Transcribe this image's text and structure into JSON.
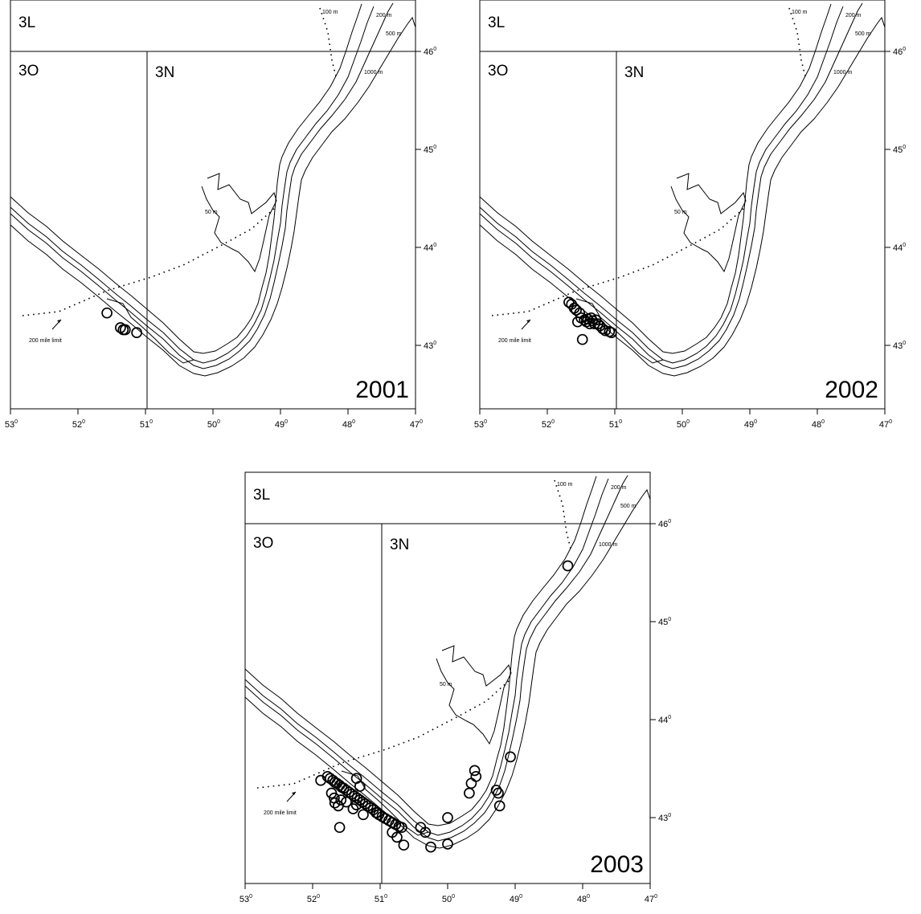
{
  "maps": [
    {
      "year": "2001",
      "areas": {
        "top": "3L",
        "bottom_left": "3O",
        "bottom_right": "3N"
      },
      "show_limit_label": true,
      "points": [
        [
          51.57,
          43.33
        ],
        [
          51.37,
          43.18
        ],
        [
          51.33,
          43.16
        ],
        [
          51.3,
          43.16
        ],
        [
          51.13,
          43.13
        ]
      ]
    },
    {
      "year": "2002",
      "areas": {
        "top": "3L",
        "bottom_left": "3O",
        "bottom_right": "3N"
      },
      "show_limit_label": true,
      "points": [
        [
          51.68,
          43.44
        ],
        [
          51.64,
          43.42
        ],
        [
          51.6,
          43.38
        ],
        [
          51.57,
          43.36
        ],
        [
          51.52,
          43.33
        ],
        [
          51.5,
          43.28
        ],
        [
          51.45,
          43.26
        ],
        [
          51.42,
          43.24
        ],
        [
          51.4,
          43.27
        ],
        [
          51.37,
          43.22
        ],
        [
          51.35,
          43.28
        ],
        [
          51.33,
          43.25
        ],
        [
          51.3,
          43.22
        ],
        [
          51.28,
          43.26
        ],
        [
          51.25,
          43.22
        ],
        [
          51.22,
          43.2
        ],
        [
          51.18,
          43.17
        ],
        [
          51.14,
          43.15
        ],
        [
          51.08,
          43.14
        ],
        [
          51.05,
          43.13
        ],
        [
          51.55,
          43.24
        ],
        [
          51.48,
          43.06
        ]
      ]
    },
    {
      "year": "2003",
      "areas": {
        "top": "3L",
        "bottom_left": "3O",
        "bottom_right": "3N"
      },
      "show_limit_label": true,
      "points": [
        [
          51.88,
          43.38
        ],
        [
          51.78,
          43.42
        ],
        [
          51.74,
          43.4
        ],
        [
          51.7,
          43.38
        ],
        [
          51.67,
          43.36
        ],
        [
          51.64,
          43.35
        ],
        [
          51.6,
          43.33
        ],
        [
          51.57,
          43.31
        ],
        [
          51.54,
          43.3
        ],
        [
          51.5,
          43.28
        ],
        [
          51.46,
          43.26
        ],
        [
          51.42,
          43.24
        ],
        [
          51.38,
          43.22
        ],
        [
          51.34,
          43.2
        ],
        [
          51.3,
          43.18
        ],
        [
          51.26,
          43.16
        ],
        [
          51.22,
          43.14
        ],
        [
          51.18,
          43.12
        ],
        [
          51.14,
          43.1
        ],
        [
          51.1,
          43.08
        ],
        [
          51.06,
          43.05
        ],
        [
          51.02,
          43.03
        ],
        [
          50.97,
          43.01
        ],
        [
          50.92,
          42.99
        ],
        [
          50.87,
          42.97
        ],
        [
          50.82,
          42.95
        ],
        [
          50.77,
          42.93
        ],
        [
          50.72,
          42.91
        ],
        [
          50.68,
          42.9
        ],
        [
          51.72,
          43.25
        ],
        [
          51.67,
          43.15
        ],
        [
          51.62,
          43.12
        ],
        [
          51.58,
          43.18
        ],
        [
          51.4,
          43.09
        ],
        [
          51.35,
          43.13
        ],
        [
          51.25,
          43.03
        ],
        [
          51.5,
          43.16
        ],
        [
          51.68,
          43.2
        ],
        [
          51.35,
          43.4
        ],
        [
          51.3,
          43.32
        ],
        [
          51.6,
          42.9
        ],
        [
          51.05,
          43.05
        ],
        [
          50.82,
          42.85
        ],
        [
          50.75,
          42.8
        ],
        [
          50.65,
          42.72
        ],
        [
          50.4,
          42.9
        ],
        [
          50.33,
          42.85
        ],
        [
          50.25,
          42.7
        ],
        [
          50.0,
          43.0
        ],
        [
          50.0,
          42.73
        ],
        [
          49.68,
          43.25
        ],
        [
          49.65,
          43.35
        ],
        [
          49.6,
          43.48
        ],
        [
          49.58,
          43.42
        ],
        [
          49.28,
          43.28
        ],
        [
          49.25,
          43.25
        ],
        [
          49.23,
          43.12
        ],
        [
          49.07,
          43.62
        ],
        [
          48.22,
          45.57
        ]
      ]
    }
  ],
  "x_ticks": [
    {
      "deg": "53",
      "sup": "0"
    },
    {
      "deg": "52",
      "sup": "0"
    },
    {
      "deg": "51",
      "sup": "0"
    },
    {
      "deg": "50",
      "sup": "0"
    },
    {
      "deg": "49",
      "sup": "0"
    },
    {
      "deg": "48",
      "sup": "0"
    },
    {
      "deg": "47",
      "sup": "0"
    }
  ],
  "y_ticks": [
    {
      "deg": "46",
      "sup": "0"
    },
    {
      "deg": "45",
      "sup": "0"
    },
    {
      "deg": "44",
      "sup": "0"
    },
    {
      "deg": "43",
      "sup": "0"
    }
  ],
  "contour_labels": {
    "c100": "100 m",
    "c200": "200 m",
    "c500": "500 m",
    "c1000": "1000 m",
    "c50": "50 m"
  },
  "limit_label": "200 mile limit",
  "colors": {
    "ink": "#000000",
    "background": "#ffffff"
  }
}
